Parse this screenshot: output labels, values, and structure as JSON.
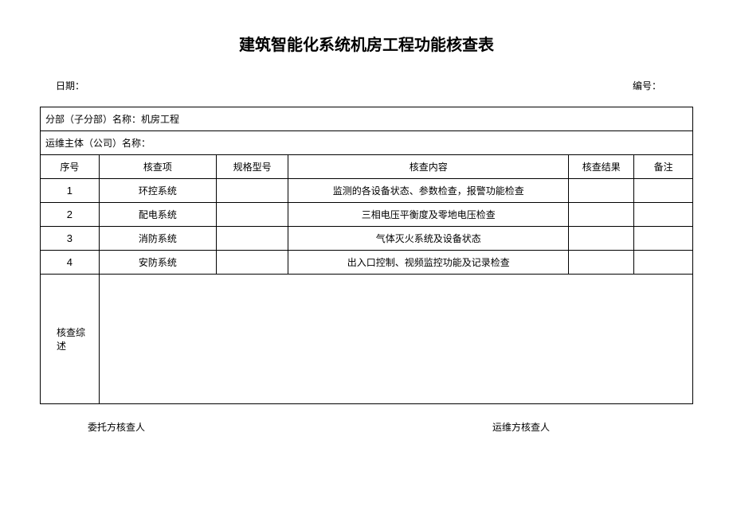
{
  "title": "建筑智能化系统机房工程功能核查表",
  "meta": {
    "date_label": "日期：",
    "no_label": "编号："
  },
  "section_label": "分部（子分部）名称：机房工程",
  "maintainer_label": "运维主体（公司）名称：",
  "columns": {
    "seq": "序号",
    "item": "核查项",
    "spec": "规格型号",
    "content": "核查内容",
    "result": "核查结果",
    "remark": "备注"
  },
  "col_widths": {
    "seq": "9%",
    "item": "18%",
    "spec": "11%",
    "content": "43%",
    "result": "10%",
    "remark": "9%"
  },
  "rows": [
    {
      "seq": "1",
      "item": "环控系统",
      "spec": "",
      "content": "监测的各设备状态、参数检查，报警功能检查",
      "result": "",
      "remark": ""
    },
    {
      "seq": "2",
      "item": "配电系统",
      "spec": "",
      "content": "三相电压平衡度及零地电压检查",
      "result": "",
      "remark": ""
    },
    {
      "seq": "3",
      "item": "消防系统",
      "spec": "",
      "content": "气体灭火系统及设备状态",
      "result": "",
      "remark": ""
    },
    {
      "seq": "4",
      "item": "安防系统",
      "spec": "",
      "content": "出入口控制、视频监控功能及记录检查",
      "result": "",
      "remark": ""
    }
  ],
  "summary_label": "核查综述",
  "footer": {
    "client": "委托方核查人",
    "maintainer": "运维方核查人"
  }
}
